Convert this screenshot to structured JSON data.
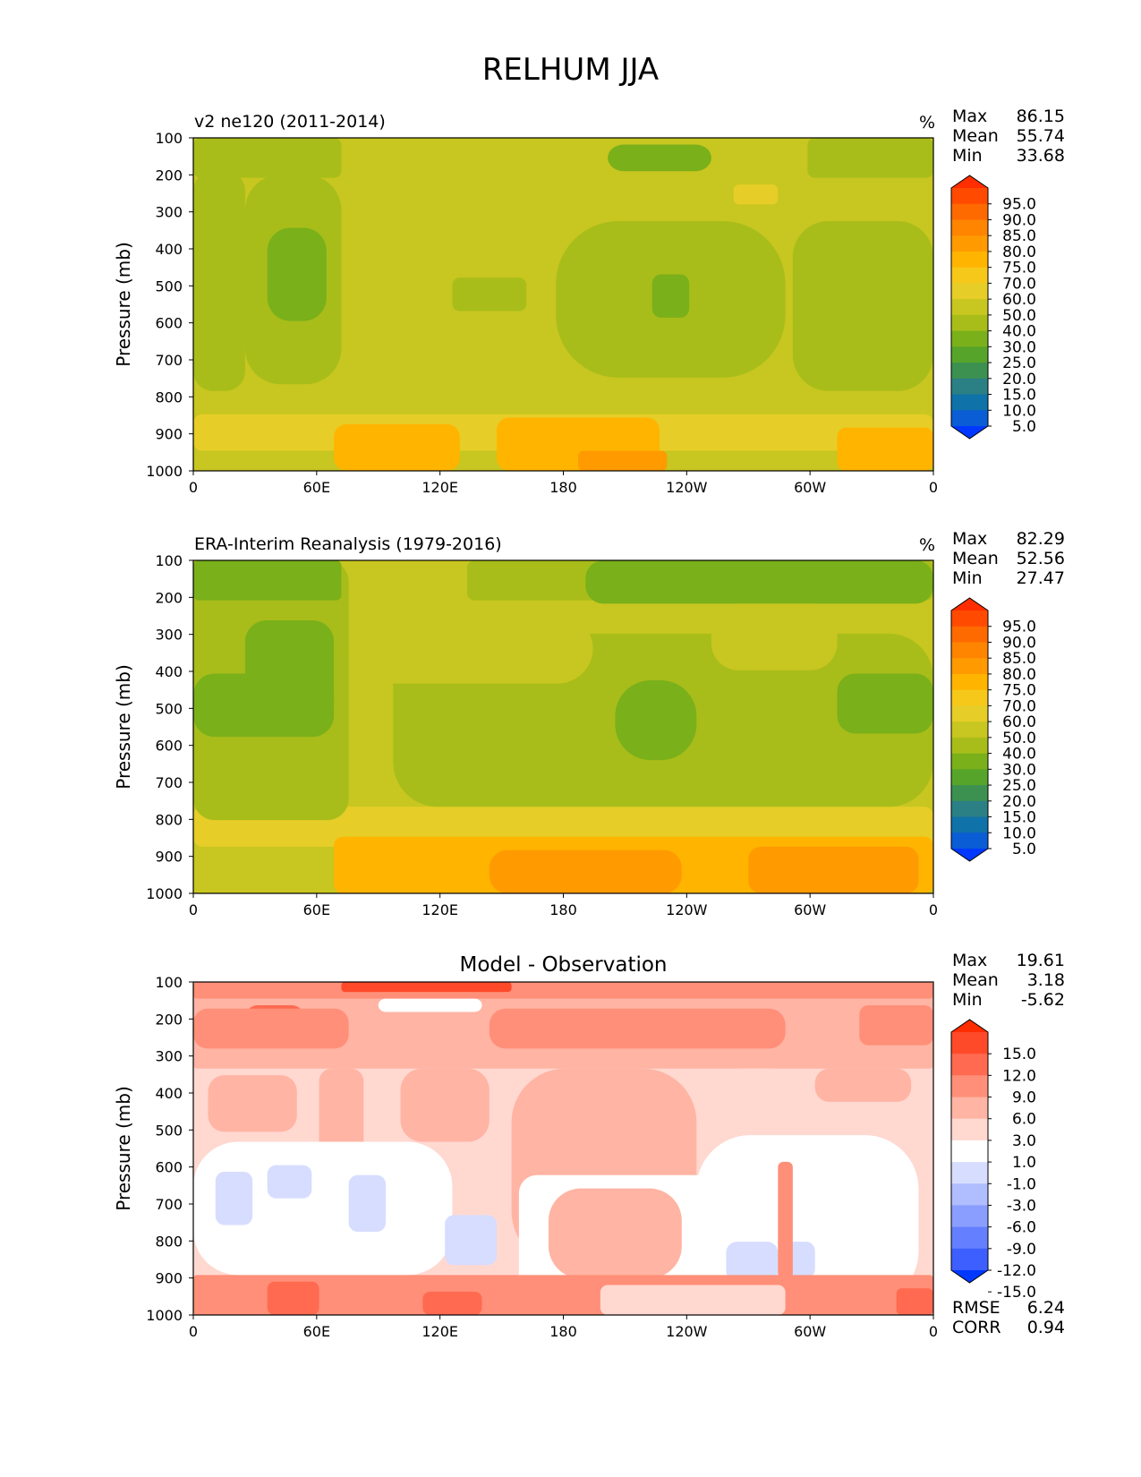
{
  "figure_title": "RELHUM JJA",
  "chart_data": [
    {
      "type": "heatmap",
      "panel": "test",
      "title": "v2 ne120 (2011-2014)",
      "units": "%",
      "ylabel": "Pressure (mb)",
      "x_ticks": [
        "0",
        "60E",
        "120E",
        "180",
        "120W",
        "60W",
        "0"
      ],
      "y_ticks": [
        "100",
        "200",
        "300",
        "400",
        "500",
        "600",
        "700",
        "800",
        "900",
        "1000"
      ],
      "ylim": [
        1000,
        100
      ],
      "stats": [
        {
          "label": "Max",
          "value": "86.15"
        },
        {
          "label": "Mean",
          "value": "55.74"
        },
        {
          "label": "Min",
          "value": "33.68"
        }
      ],
      "colorbar_levels": [
        "95.0",
        "90.0",
        "85.0",
        "80.0",
        "75.0",
        "70.0",
        "60.0",
        "50.0",
        "40.0",
        "30.0",
        "25.0",
        "20.0",
        "15.0",
        "10.0",
        "5.0"
      ],
      "colorbar_colors": [
        "#ff2d00",
        "#ff4a00",
        "#ff6a00",
        "#ff8400",
        "#ff9a00",
        "#ffb400",
        "#f6c81a",
        "#e6cd28",
        "#c8c620",
        "#a8bd1a",
        "#7ab01a",
        "#56a52a",
        "#3c9050",
        "#2b8085",
        "#0f72a8",
        "#0a5dd4",
        "#0038ff"
      ],
      "field_colors": {
        "30.0": "#7ab01a",
        "40.0": "#a8bd1a",
        "50.0": "#c8c620",
        "60.0": "#e6cd28",
        "70.0": "#ffb400",
        "80.0": "#ff9a00"
      }
    },
    {
      "type": "heatmap",
      "panel": "reference",
      "title": "ERA-Interim Reanalysis (1979-2016)",
      "units": "%",
      "ylabel": "Pressure (mb)",
      "x_ticks": [
        "0",
        "60E",
        "120E",
        "180",
        "120W",
        "60W",
        "0"
      ],
      "y_ticks": [
        "100",
        "200",
        "300",
        "400",
        "500",
        "600",
        "700",
        "800",
        "900",
        "1000"
      ],
      "ylim": [
        1000,
        100
      ],
      "stats": [
        {
          "label": "Max",
          "value": "82.29"
        },
        {
          "label": "Mean",
          "value": "52.56"
        },
        {
          "label": "Min",
          "value": "27.47"
        }
      ],
      "colorbar_levels": [
        "95.0",
        "90.0",
        "85.0",
        "80.0",
        "75.0",
        "70.0",
        "60.0",
        "50.0",
        "40.0",
        "30.0",
        "25.0",
        "20.0",
        "15.0",
        "10.0",
        "5.0"
      ],
      "colorbar_colors": [
        "#ff2d00",
        "#ff4a00",
        "#ff6a00",
        "#ff8400",
        "#ff9a00",
        "#ffb400",
        "#f6c81a",
        "#e6cd28",
        "#c8c620",
        "#a8bd1a",
        "#7ab01a",
        "#56a52a",
        "#3c9050",
        "#2b8085",
        "#0f72a8",
        "#0a5dd4",
        "#0038ff"
      ],
      "field_colors": {
        "30.0": "#7ab01a",
        "40.0": "#a8bd1a",
        "50.0": "#c8c620",
        "60.0": "#e6cd28",
        "70.0": "#ffb400",
        "80.0": "#ff9a00"
      }
    },
    {
      "type": "heatmap",
      "panel": "difference",
      "title": "Model - Observation",
      "units": "",
      "ylabel": "Pressure (mb)",
      "x_ticks": [
        "0",
        "60E",
        "120E",
        "180",
        "120W",
        "60W",
        "0"
      ],
      "y_ticks": [
        "100",
        "200",
        "300",
        "400",
        "500",
        "600",
        "700",
        "800",
        "900",
        "1000"
      ],
      "ylim": [
        1000,
        100
      ],
      "stats": [
        {
          "label": "Max",
          "value": "19.61"
        },
        {
          "label": "Mean",
          "value": "3.18"
        },
        {
          "label": "Min",
          "value": "-5.62"
        }
      ],
      "extra_stats": [
        {
          "label": "RMSE",
          "value": "6.24"
        },
        {
          "label": "CORR",
          "value": "0.94"
        }
      ],
      "colorbar_levels": [
        "15.0",
        "12.0",
        "9.0",
        "6.0",
        "3.0",
        "1.0",
        "-1.0",
        "-3.0",
        "-6.0",
        "-9.0",
        "-12.0",
        "-15.0"
      ],
      "colorbar_colors": [
        "#ff2d00",
        "#ff4a2a",
        "#ff6a50",
        "#ff8f78",
        "#ffb4a4",
        "#ffd8d0",
        "#ffffff",
        "#d6ddff",
        "#b0beff",
        "#8a9eff",
        "#647fff",
        "#3d5fff",
        "#0038ff"
      ],
      "field_colors": {
        "-3.0": "#d6ddff",
        "1.0": "#ffffff",
        "3.0": "#ffd8d0",
        "6.0": "#ffb4a4",
        "9.0": "#ff8f78",
        "12.0": "#ff6a50",
        "15.0": "#ff4a2a"
      }
    }
  ]
}
